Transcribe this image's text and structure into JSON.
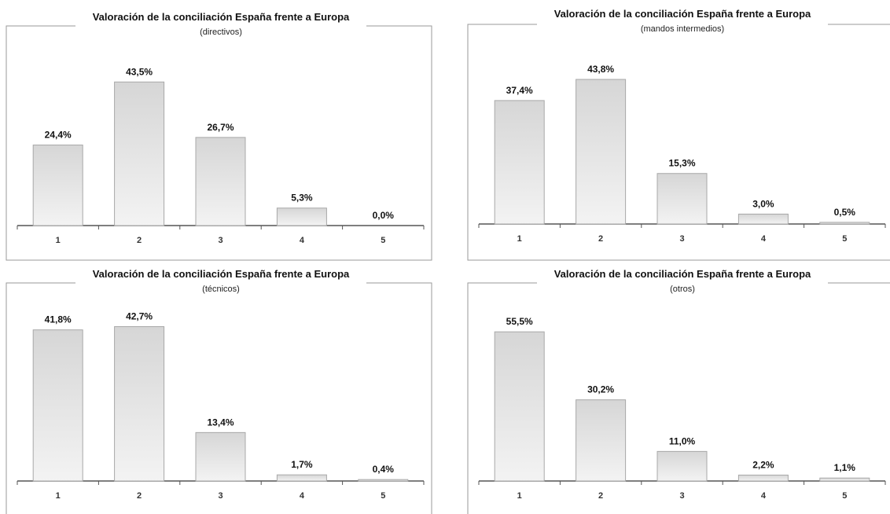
{
  "chart_data": [
    {
      "type": "bar",
      "title": "Valoración  de la conciliación España frente a Europa",
      "subtitle": "(directivos)",
      "categories": [
        "1",
        "2",
        "3",
        "4",
        "5"
      ],
      "values": [
        24.4,
        43.5,
        26.7,
        5.3,
        0.0
      ],
      "data_labels": [
        "24,4%",
        "43,5%",
        "26,7%",
        "5,3%",
        "0,0%"
      ],
      "unit": "%",
      "ylim": [
        0,
        50
      ],
      "grid": false,
      "legend": "none",
      "bar_color": "#e3e3e3"
    },
    {
      "type": "bar",
      "title": "Valoración  de la conciliación España frente a Europa",
      "subtitle": "(mandos intermedios)",
      "categories": [
        "1",
        "2",
        "3",
        "4",
        "5"
      ],
      "values": [
        37.4,
        43.8,
        15.3,
        3.0,
        0.5
      ],
      "data_labels": [
        "37,4%",
        "43,8%",
        "15,3%",
        "3,0%",
        "0,5%"
      ],
      "unit": "%",
      "ylim": [
        0,
        50
      ],
      "grid": false,
      "legend": "none",
      "bar_color": "#e3e3e3"
    },
    {
      "type": "bar",
      "title": "Valoración  de la conciliación España frente a Europa",
      "subtitle": "(técnicos)",
      "categories": [
        "1",
        "2",
        "3",
        "4",
        "5"
      ],
      "values": [
        41.8,
        42.7,
        13.4,
        1.7,
        0.4
      ],
      "data_labels": [
        "41,8%",
        "42,7%",
        "13,4%",
        "1,7%",
        "0,4%"
      ],
      "unit": "%",
      "ylim": [
        0,
        50
      ],
      "grid": false,
      "legend": "none",
      "bar_color": "#e3e3e3"
    },
    {
      "type": "bar",
      "title": "Valoración  de la conciliación España frente a Europa",
      "subtitle": "(otros)",
      "categories": [
        "1",
        "2",
        "3",
        "4",
        "5"
      ],
      "values": [
        55.5,
        30.2,
        11.0,
        2.2,
        1.1
      ],
      "data_labels": [
        "55,5%",
        "30,2%",
        "11,0%",
        "2,2%",
        "1,1%"
      ],
      "unit": "%",
      "ylim": [
        0,
        60
      ],
      "grid": false,
      "legend": "none",
      "bar_color": "#e3e3e3"
    }
  ]
}
